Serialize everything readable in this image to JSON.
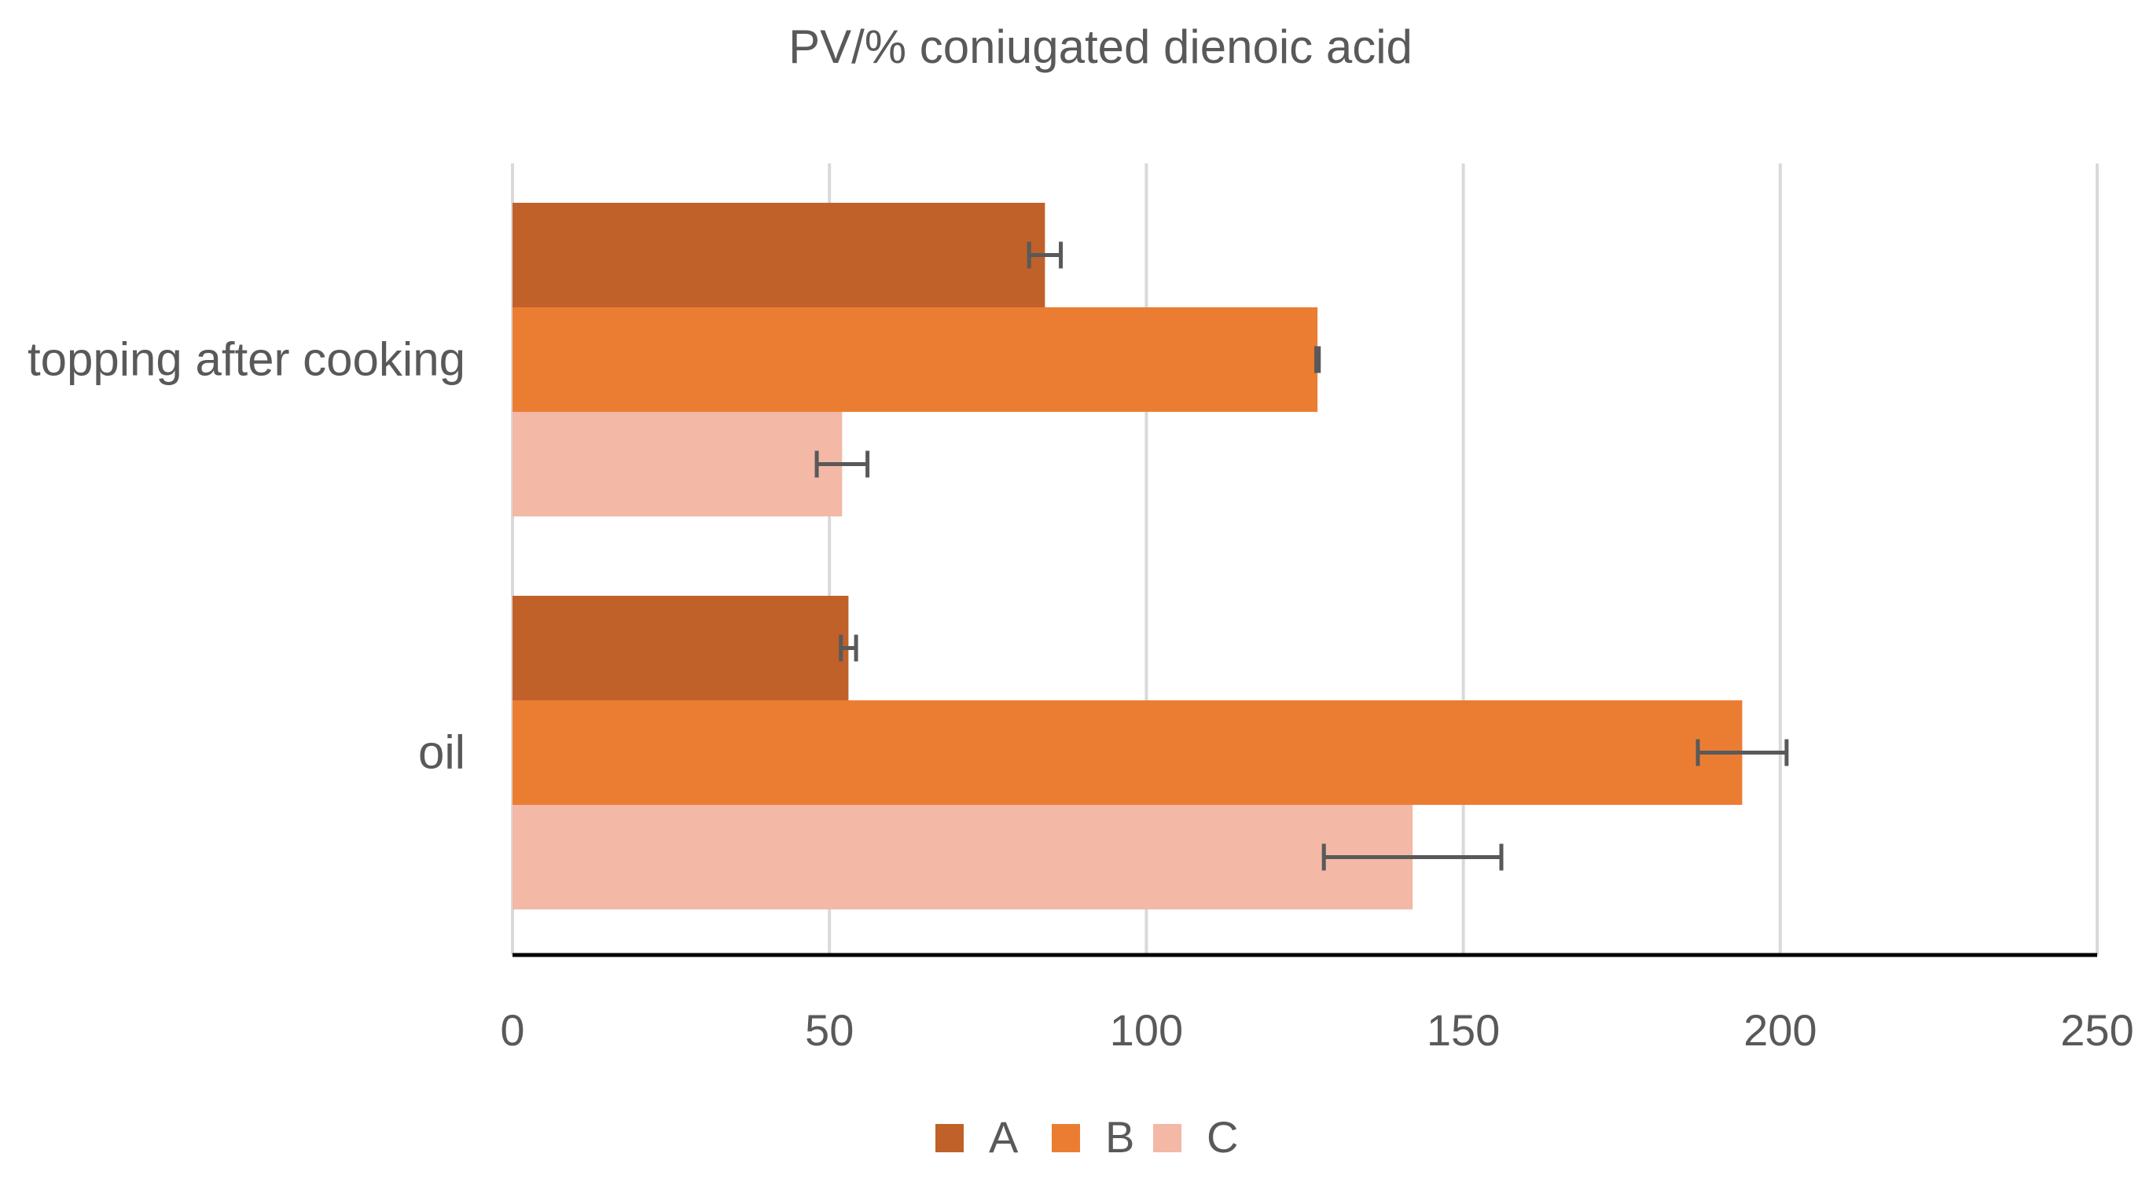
{
  "chart_data": {
    "type": "bar",
    "orientation": "horizontal",
    "title": "PV/% coniugated dienoic acid",
    "xlabel": "",
    "ylabel": "",
    "xlim": [
      0,
      250
    ],
    "x_ticks": [
      0,
      50,
      100,
      150,
      200,
      250
    ],
    "grid": true,
    "legend_position": "bottom",
    "categories": [
      "topping after cooking",
      "oil"
    ],
    "series": [
      {
        "name": "A",
        "color": "#C0612A",
        "values": [
          84,
          53
        ],
        "errors": [
          2.5,
          1.2
        ]
      },
      {
        "name": "B",
        "color": "#EB7D33",
        "values": [
          127,
          194
        ],
        "errors": [
          0.2,
          7
        ]
      },
      {
        "name": "C",
        "color": "#F3B8A6",
        "values": [
          52,
          142
        ],
        "errors": [
          4,
          14
        ]
      }
    ]
  }
}
